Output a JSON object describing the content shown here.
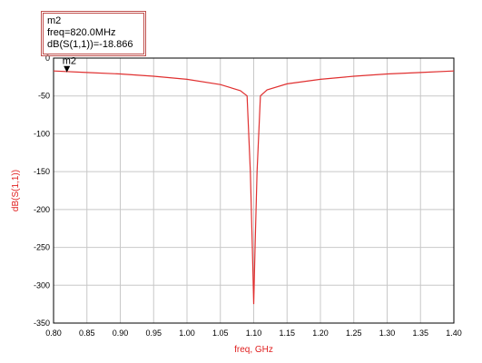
{
  "chart_data": {
    "type": "line",
    "xlabel": "freq, GHz",
    "ylabel": "dB(S(1,1))",
    "xlim": [
      0.8,
      1.4
    ],
    "ylim": [
      -350,
      0
    ],
    "x_ticks": [
      "0.80",
      "0.85",
      "0.90",
      "0.95",
      "1.00",
      "1.05",
      "1.10",
      "1.15",
      "1.20",
      "1.25",
      "1.30",
      "1.35",
      "1.40"
    ],
    "y_ticks": [
      "0",
      "-50",
      "-100",
      "-150",
      "-200",
      "-250",
      "-300",
      "-350"
    ],
    "grid": true,
    "line_color": "#e03030",
    "series": [
      {
        "name": "",
        "x": [
          0.8,
          0.85,
          0.9,
          0.95,
          1.0,
          1.05,
          1.08,
          1.09,
          1.095,
          1.098,
          1.1,
          1.102,
          1.105,
          1.11,
          1.12,
          1.15,
          1.2,
          1.25,
          1.3,
          1.35,
          1.4
        ],
        "y": [
          -17,
          -19,
          -21,
          -24,
          -28,
          -35,
          -43,
          -50,
          -150,
          -250,
          -325,
          -250,
          -150,
          -50,
          -42,
          -34,
          -28,
          -24,
          -21,
          -19,
          -17
        ]
      }
    ],
    "marker": {
      "name": "m2",
      "x": 0.82,
      "y": -18.866,
      "readout": [
        "m2",
        "freq=820.0MHz",
        "dB(S(1,1))=-18.866"
      ]
    }
  }
}
